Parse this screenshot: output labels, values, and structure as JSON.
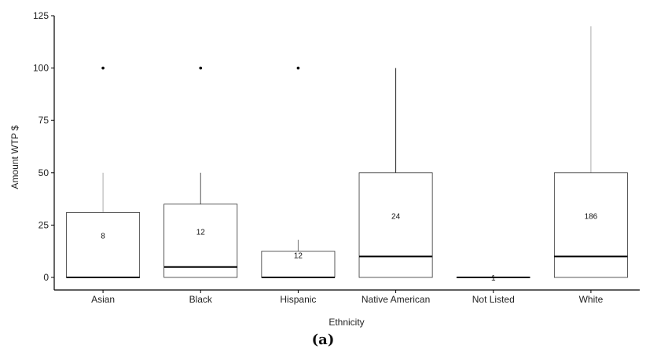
{
  "chart_data": {
    "type": "box",
    "xlabel": "Ethnicity",
    "ylabel": "Amount WTP $",
    "ylim": [
      -6,
      125
    ],
    "yticks": [
      0,
      25,
      50,
      75,
      100,
      125
    ],
    "categories": [
      "Asian",
      "Black",
      "Hispanic",
      "Native American",
      "Not Listed",
      "White"
    ],
    "boxes": [
      {
        "category": "Asian",
        "min": 0,
        "q1": 0,
        "median": 0,
        "q3": 31,
        "max": 50,
        "outliers": [
          100
        ],
        "n": "8",
        "whisker_color": "#aaaaaa"
      },
      {
        "category": "Black",
        "min": 0,
        "q1": 0,
        "median": 5,
        "q3": 35,
        "max": 50,
        "outliers": [
          100
        ],
        "n": "12",
        "whisker_color": "#555555"
      },
      {
        "category": "Hispanic",
        "min": 0,
        "q1": 0,
        "median": 0,
        "q3": 12.5,
        "max": 18,
        "outliers": [
          100
        ],
        "n": "12",
        "whisker_color": "#777777"
      },
      {
        "category": "Native American",
        "min": 0,
        "q1": 0,
        "median": 10,
        "q3": 50,
        "max": 100,
        "outliers": [],
        "n": "24",
        "whisker_color": "#222222"
      },
      {
        "category": "Not Listed",
        "min": 0,
        "q1": 0,
        "median": 0,
        "q3": 0,
        "max": 0,
        "outliers": [],
        "n": "1",
        "whisker_color": "#222222"
      },
      {
        "category": "White",
        "min": 0,
        "q1": 0,
        "median": 10,
        "q3": 50,
        "max": 120,
        "outliers": [],
        "n": "186",
        "whisker_color": "#aaaaaa"
      }
    ],
    "grid": false,
    "legend": "none"
  },
  "caption": "(a)"
}
